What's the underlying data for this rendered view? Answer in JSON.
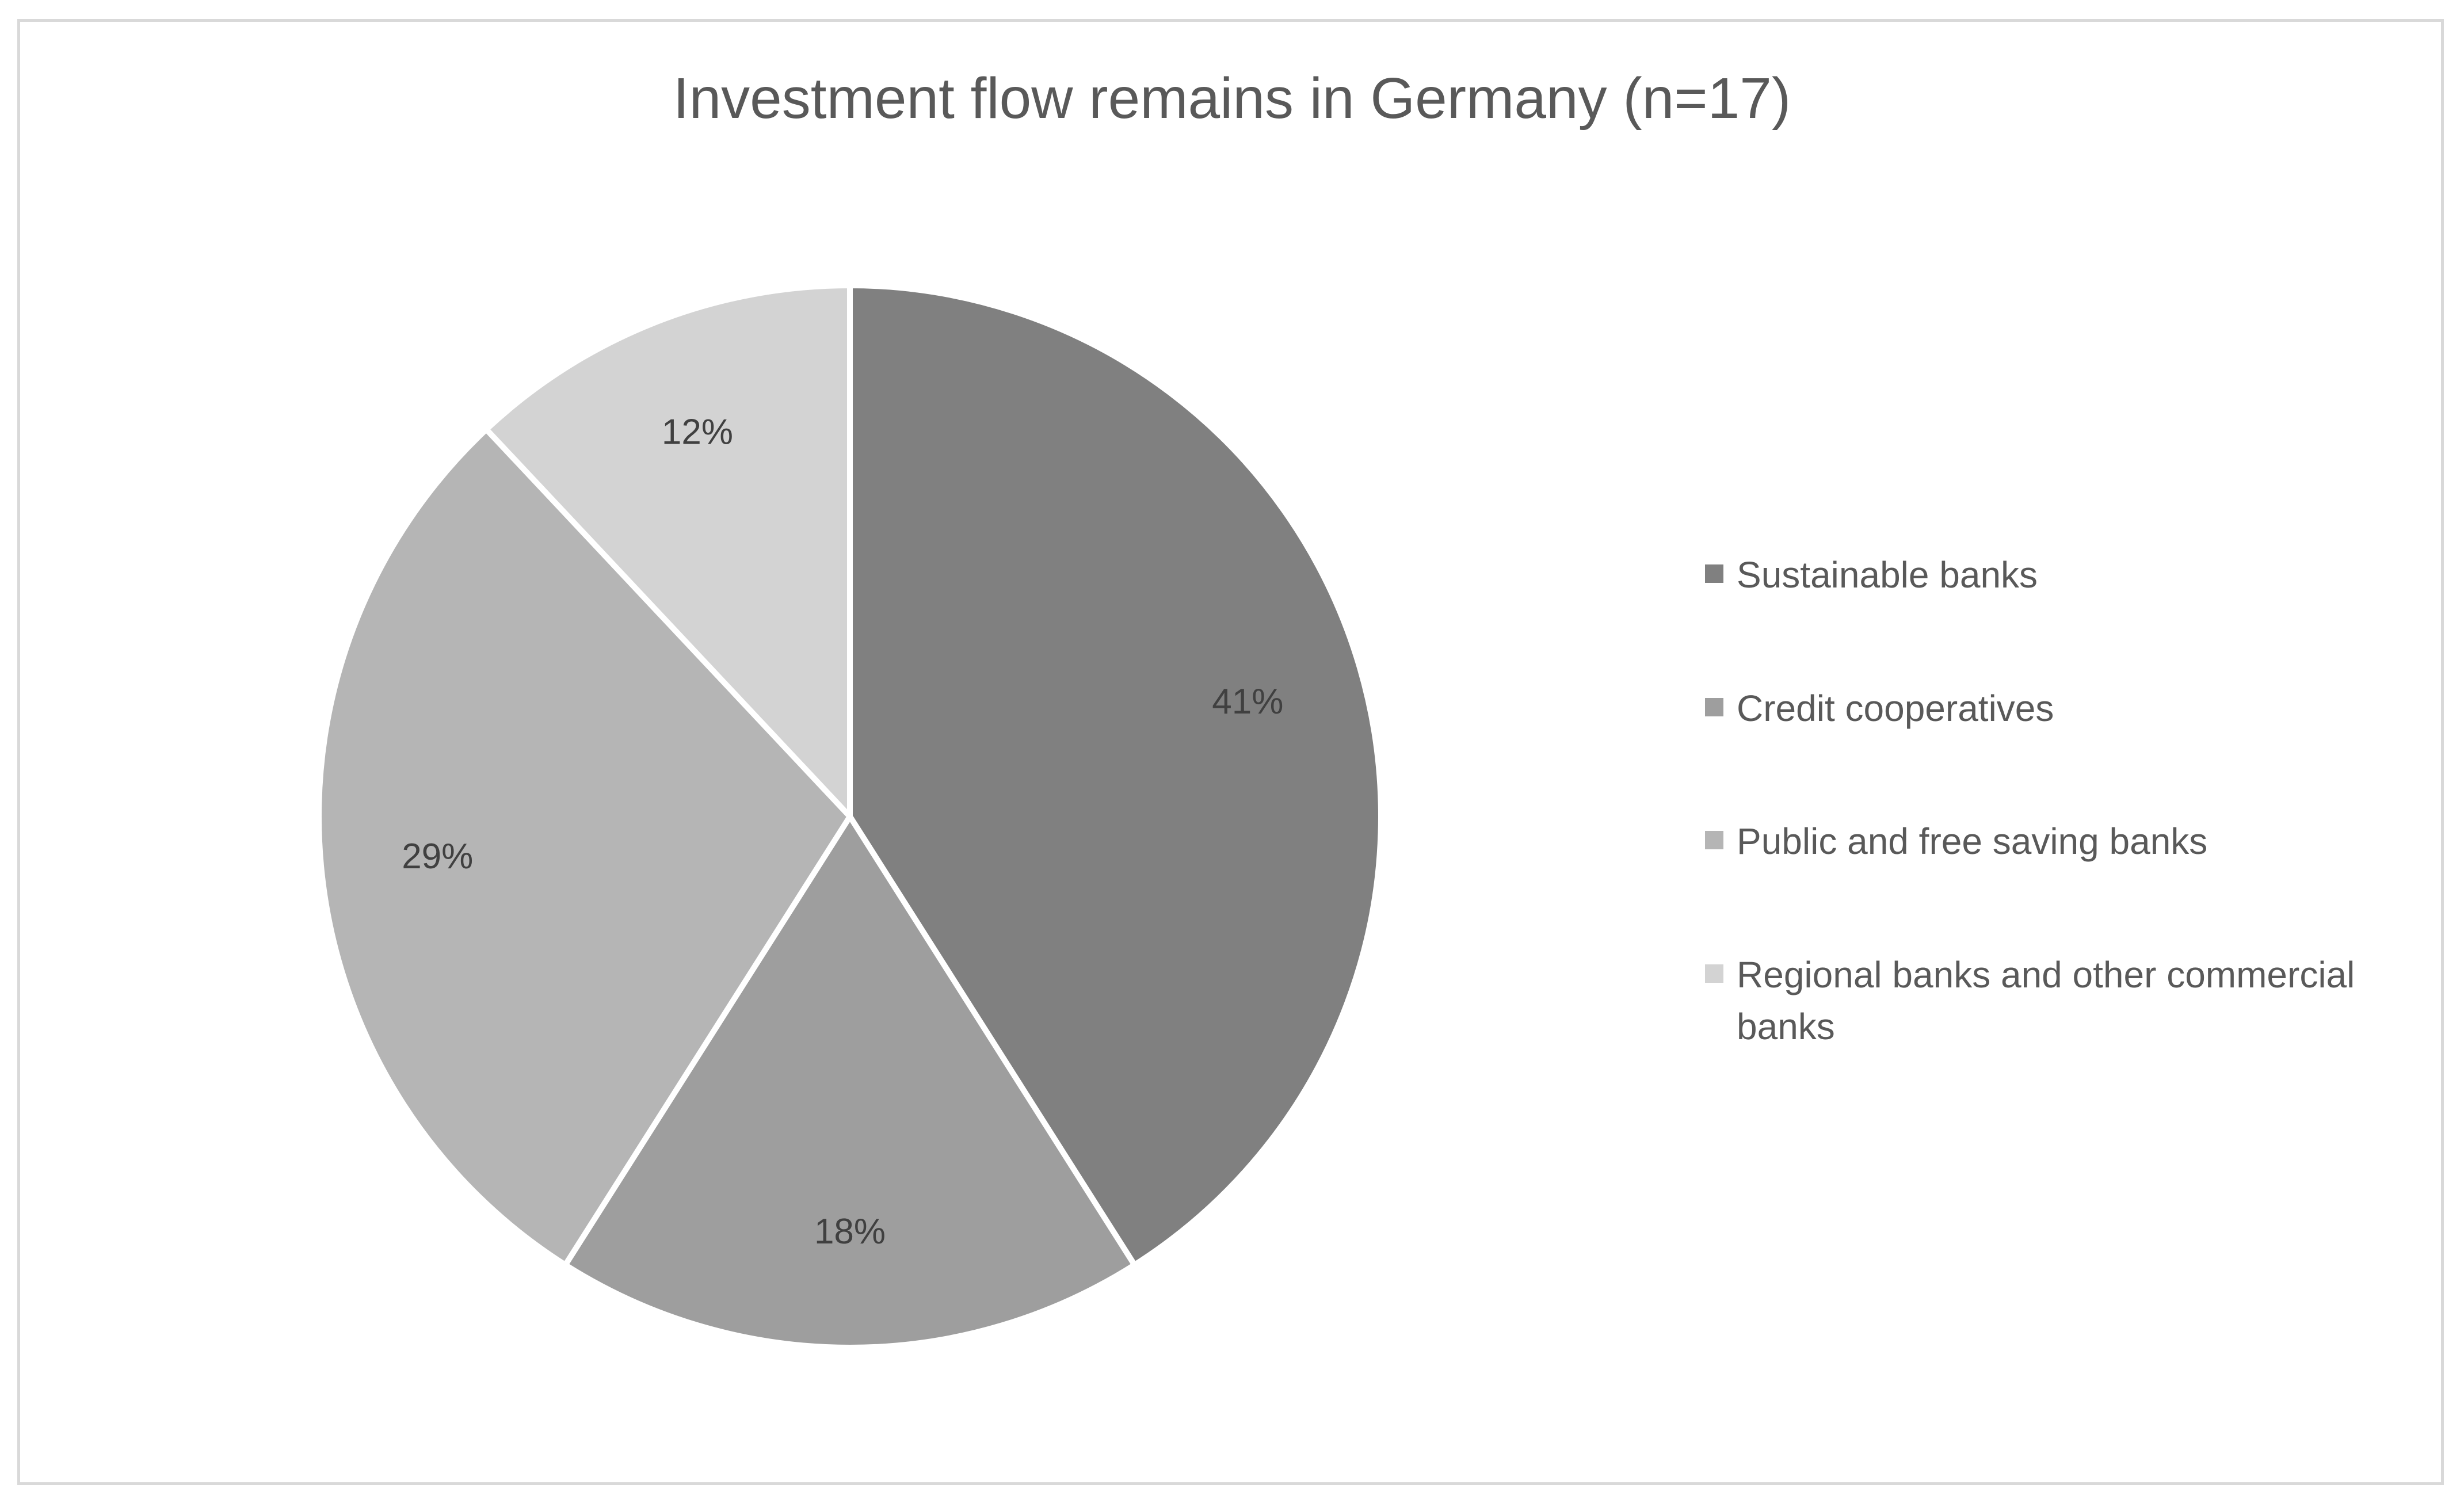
{
  "chart_data": {
    "type": "pie",
    "title": "Investment flow remains in Germany (n=17)",
    "categories": [
      "Sustainable banks",
      "Credit cooperatives",
      "Public and free saving banks",
      "Regional banks and other commercial banks"
    ],
    "values": [
      41,
      18,
      29,
      12
    ],
    "labels": [
      "41%",
      "18%",
      "29%",
      "12%"
    ],
    "colors": [
      "#808080",
      "#9e9e9e",
      "#b5b5b5",
      "#d3d3d3"
    ],
    "legend_lines": [
      [
        "Sustainable banks"
      ],
      [
        "Credit cooperatives"
      ],
      [
        "Public and free saving banks"
      ],
      [
        "Regional banks and other commercial",
        "banks"
      ]
    ],
    "legend_position": "right",
    "start_angle": "12 o'clock",
    "direction": "clockwise"
  }
}
